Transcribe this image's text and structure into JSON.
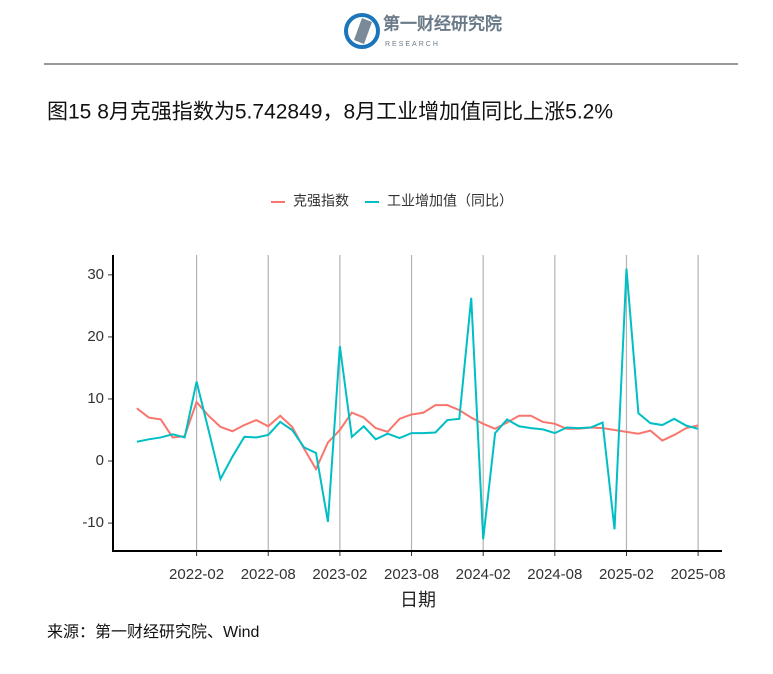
{
  "header": {
    "logo_text": "第一财经研究院",
    "logo_sub": "RESEARCH"
  },
  "chart_data": {
    "type": "line",
    "title": "图15 8月克强指数为5.742849，8月工业增加值同比上涨5.2%",
    "x_label": "日期",
    "x": [
      "2021-09",
      "2021-10",
      "2021-11",
      "2021-12",
      "2022-01",
      "2022-02",
      "2022-03",
      "2022-04",
      "2022-05",
      "2022-06",
      "2022-07",
      "2022-08",
      "2022-09",
      "2022-10",
      "2022-11",
      "2022-12",
      "2023-01",
      "2023-02",
      "2023-03",
      "2023-04",
      "2023-05",
      "2023-06",
      "2023-07",
      "2023-08",
      "2023-09",
      "2023-10",
      "2023-11",
      "2023-12",
      "2024-01",
      "2024-02",
      "2024-03",
      "2024-04",
      "2024-05",
      "2024-06",
      "2024-07",
      "2024-08",
      "2024-09",
      "2024-10",
      "2024-11",
      "2024-12",
      "2025-01",
      "2025-02",
      "2025-03",
      "2025-04",
      "2025-05",
      "2025-06",
      "2025-07",
      "2025-08"
    ],
    "series": [
      {
        "name": "克强指数",
        "color": "#F8766D",
        "values": [
          8.5,
          7,
          6.7,
          3.8,
          4,
          9.5,
          7.3,
          5.5,
          4.8,
          5.8,
          6.6,
          5.6,
          7.3,
          5.5,
          2,
          -1.3,
          3,
          5,
          7.8,
          7,
          5.3,
          4.7,
          6.8,
          7.5,
          7.8,
          9,
          9,
          8.2,
          7,
          6,
          5.2,
          6.2,
          7.3,
          7.3,
          6.3,
          6,
          5.2,
          5.2,
          5.4,
          5.3,
          5,
          4.7,
          4.4,
          4.9,
          3.3,
          4.2,
          5.3,
          5.742849
        ]
      },
      {
        "name": "工业增加值（同比）",
        "color": "#00BFC4",
        "values": [
          3.1,
          3.5,
          3.8,
          4.3,
          3.8,
          12.8,
          5,
          -2.9,
          0.7,
          3.9,
          3.8,
          4.2,
          6.3,
          5,
          2.2,
          1.3,
          -9.8,
          18.5,
          3.9,
          5.6,
          3.5,
          4.4,
          3.7,
          4.5,
          4.5,
          4.6,
          6.6,
          6.8,
          26.3,
          -12.6,
          4.5,
          6.7,
          5.6,
          5.3,
          5.1,
          4.5,
          5.4,
          5.3,
          5.4,
          6.2,
          -11,
          31,
          7.7,
          6.1,
          5.8,
          6.8,
          5.7,
          5.2
        ]
      }
    ],
    "xlim": [
      "2021-07",
      "2025-10"
    ],
    "xticks": [
      "2022-02",
      "2022-08",
      "2023-02",
      "2023-08",
      "2024-02",
      "2024-08",
      "2025-02",
      "2025-08"
    ],
    "ylim": [
      -14.5,
      33.2
    ],
    "yticks": [
      -10,
      0,
      10,
      20,
      30
    ],
    "grid": "x",
    "legend": "top"
  },
  "source": "来源：第一财经研究院、Wind"
}
